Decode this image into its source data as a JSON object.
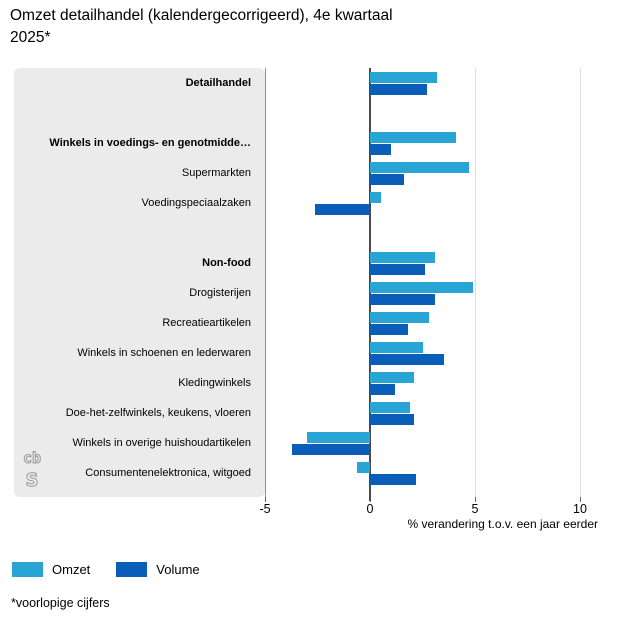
{
  "title": {
    "lines": [
      "Omzet detailhandel (kalendergecorrigeerd), 4e kwartaal",
      "2025*"
    ]
  },
  "chart_data": {
    "type": "bar",
    "orientation": "horizontal",
    "title": "Omzet detailhandel (kalendergecorrigeerd), 4e kwartaal 2025*",
    "xlabel": "% verandering t.o.v. een jaar eerder",
    "xlim": [
      -5,
      11
    ],
    "grid": true,
    "legend_position": "bottom-left",
    "axis": {
      "ticks": [
        {
          "value": -5,
          "label": "-5"
        },
        {
          "value": 0,
          "label": "0"
        },
        {
          "value": 5,
          "label": "5"
        },
        {
          "value": 10,
          "label": "10"
        }
      ],
      "gridlines": [
        5,
        10
      ]
    },
    "series": [
      {
        "name": "Omzet",
        "color": "#28a5d4"
      },
      {
        "name": "Volume",
        "color": "#0b5eb7"
      }
    ],
    "rows": [
      {
        "slot": 0,
        "label": "Detailhandel",
        "bold": true,
        "omzet": 3.2,
        "volume": 2.7
      },
      {
        "slot": 2,
        "label": "Winkels in voedings- en genotmidde…",
        "bold": true,
        "omzet": 4.1,
        "volume": 1.0
      },
      {
        "slot": 3,
        "label": "Supermarkten",
        "bold": false,
        "omzet": 4.7,
        "volume": 1.6
      },
      {
        "slot": 4,
        "label": "Voedingspeciaalzaken",
        "bold": false,
        "omzet": 0.5,
        "volume": -2.6
      },
      {
        "slot": 6,
        "label": "Non-food",
        "bold": true,
        "omzet": 3.1,
        "volume": 2.6
      },
      {
        "slot": 7,
        "label": "Drogisterijen",
        "bold": false,
        "omzet": 4.9,
        "volume": 3.1
      },
      {
        "slot": 8,
        "label": "Recreatieartikelen",
        "bold": false,
        "omzet": 2.8,
        "volume": 1.8
      },
      {
        "slot": 9,
        "label": "Winkels in schoenen en lederwaren",
        "bold": false,
        "omzet": 2.5,
        "volume": 3.5
      },
      {
        "slot": 10,
        "label": "Kledingwinkels",
        "bold": false,
        "omzet": 2.1,
        "volume": 1.2
      },
      {
        "slot": 11,
        "label": "Doe-het-zelfwinkels, keukens, vloeren",
        "bold": false,
        "omzet": 1.9,
        "volume": 2.1
      },
      {
        "slot": 12,
        "label": "Winkels in overige huishoudartikelen",
        "bold": false,
        "omzet": -3.0,
        "volume": -3.7
      },
      {
        "slot": 13,
        "label": "Consumentenelektronica, witgoed",
        "bold": false,
        "omzet": -0.6,
        "volume": 2.2
      }
    ]
  },
  "legend": {
    "items": [
      {
        "label": "Omzet",
        "color": "#28a5d4"
      },
      {
        "label": "Volume",
        "color": "#0b5eb7"
      }
    ]
  },
  "footnote": "*voorlopige cijfers",
  "logo": "cbs",
  "colors": {
    "panel": "#ebebeb",
    "zero_line": "#4a4a4a",
    "gridline": "#dcdcdc",
    "axis_boundary": "#8f8f8f"
  }
}
